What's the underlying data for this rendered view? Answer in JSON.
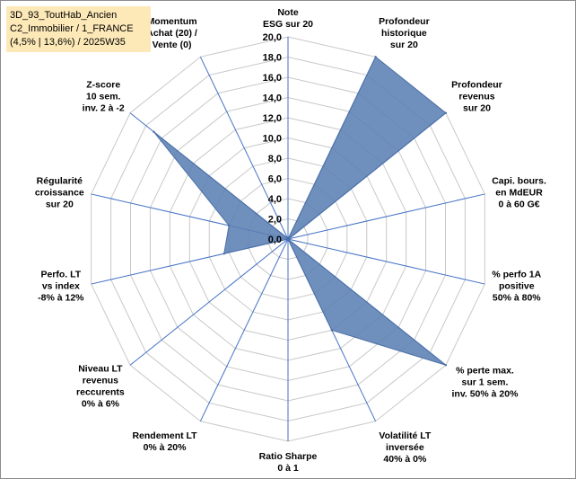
{
  "info": {
    "line1": "3D_93_ToutHab_Ancien",
    "line2": "C2_Immobilier / 1_FRANCE",
    "line3": "(4,5% | 13,6%) / 2025W35"
  },
  "chart_data": {
    "type": "radar",
    "title": "",
    "range": [
      0,
      20
    ],
    "ticks": [
      "0,0",
      "2,0",
      "4,0",
      "6,0",
      "8,0",
      "10,0",
      "12,0",
      "14,0",
      "16,0",
      "18,0",
      "20,0"
    ],
    "axes": [
      {
        "label": [
          "Note",
          "ESG sur 20"
        ],
        "value": 0.0
      },
      {
        "label": [
          "Profondeur",
          "historique",
          "sur 20"
        ],
        "value": 20.0
      },
      {
        "label": [
          "Profondeur",
          "revenus",
          "sur 20"
        ],
        "value": 20.0
      },
      {
        "label": [
          "Capi. bours.",
          "en MdEUR",
          "0 à 60 G€"
        ],
        "value": 0.1
      },
      {
        "label": [
          "% perfo 1A",
          "positive",
          "50% à 80%"
        ],
        "value": 0.0
      },
      {
        "label": [
          "% perte max.",
          "sur 1 sem.",
          "inv. 50% à 20%"
        ],
        "value": 20.0
      },
      {
        "label": [
          "Volatilité LT",
          "inversée",
          "40% à 0%"
        ],
        "value": 10.0
      },
      {
        "label": [
          "Ratio Sharpe",
          "0 à 1"
        ],
        "value": 0.0
      },
      {
        "label": [
          "Rendement LT",
          "0% à 20%"
        ],
        "value": 0.0
      },
      {
        "label": [
          "Niveau LT",
          "revenus",
          "reccurents",
          "0% à 6%"
        ],
        "value": 0.0
      },
      {
        "label": [
          "Perfo. LT",
          "vs index",
          "-8% à 12%"
        ],
        "value": 6.5
      },
      {
        "label": [
          "Régularité",
          "croissance",
          "sur 20"
        ],
        "value": 6.0
      },
      {
        "label": [
          "Z-score",
          "10 sem.",
          "inv. 2 à -2"
        ],
        "value": 17.0
      },
      {
        "label": [
          "Momentum",
          "Achat (20) /",
          "Vente (0)"
        ],
        "value": 0.1
      }
    ],
    "colors": {
      "fill": "#5b7fb4",
      "grid": "#c8c8c8",
      "spoke": "#4472c4"
    }
  }
}
